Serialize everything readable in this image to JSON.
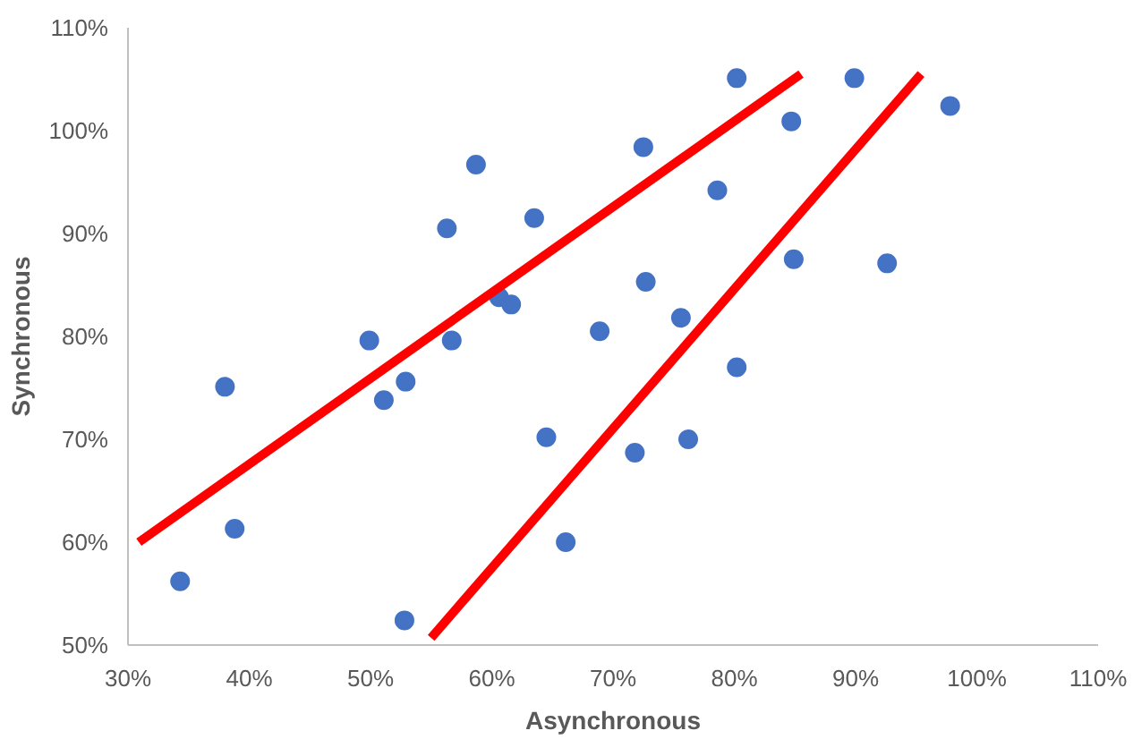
{
  "chart_data": {
    "type": "scatter",
    "xlabel": "Asynchronous",
    "ylabel": "Synchronous",
    "xlim": [
      30,
      110
    ],
    "ylim": [
      50,
      110
    ],
    "xticks": [
      {
        "value": 30,
        "label": "30%"
      },
      {
        "value": 40,
        "label": "40%"
      },
      {
        "value": 50,
        "label": "50%"
      },
      {
        "value": 60,
        "label": "60%"
      },
      {
        "value": 70,
        "label": "70%"
      },
      {
        "value": 80,
        "label": "80%"
      },
      {
        "value": 90,
        "label": "90%"
      },
      {
        "value": 100,
        "label": "100%"
      },
      {
        "value": 110,
        "label": "110%"
      }
    ],
    "yticks": [
      {
        "value": 50,
        "label": "50%"
      },
      {
        "value": 60,
        "label": "60%"
      },
      {
        "value": 70,
        "label": "70%"
      },
      {
        "value": 80,
        "label": "80%"
      },
      {
        "value": 90,
        "label": "90%"
      },
      {
        "value": 100,
        "label": "100%"
      },
      {
        "value": 110,
        "label": "110%"
      }
    ],
    "grid": false,
    "series": [
      {
        "marker": "circle",
        "color": "#4472c4",
        "x": [
          34.3,
          38.0,
          38.8,
          49.9,
          51.1,
          52.9,
          52.8,
          56.3,
          56.7,
          58.7,
          60.6,
          61.6,
          63.5,
          64.5,
          66.1,
          68.9,
          71.8,
          72.5,
          72.7,
          75.6,
          76.2,
          78.6,
          80.2,
          80.2,
          84.7,
          84.9,
          89.9,
          92.6,
          97.8
        ],
        "values": [
          56.2,
          75.1,
          61.3,
          79.6,
          73.8,
          75.6,
          52.4,
          90.5,
          79.6,
          96.7,
          83.8,
          83.1,
          91.5,
          70.2,
          60.0,
          80.5,
          68.7,
          98.4,
          85.3,
          81.8,
          70.0,
          94.2,
          105.1,
          77.0,
          100.9,
          87.5,
          105.1,
          87.1,
          102.4
        ]
      },
      {
        "type": "line",
        "color": "#ff0000",
        "x": [
          30.9,
          85.5
        ],
        "values": [
          60.0,
          105.5
        ]
      },
      {
        "type": "line",
        "color": "#ff0000",
        "x": [
          55.0,
          95.4
        ],
        "values": [
          50.7,
          105.5
        ]
      }
    ]
  }
}
